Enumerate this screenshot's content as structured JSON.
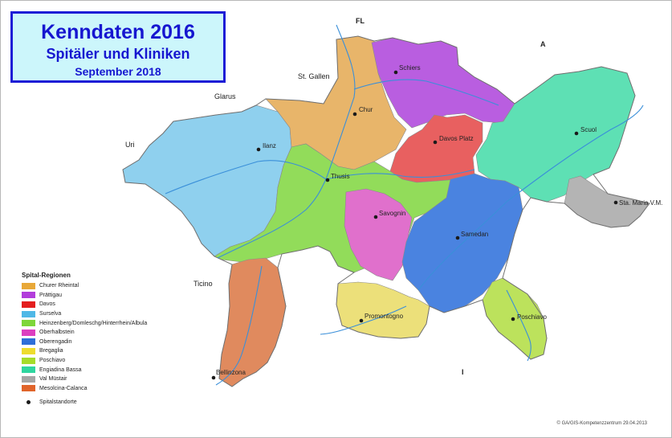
{
  "title": {
    "line1": "Kenndaten 2016",
    "line2": "Spitäler und Kliniken",
    "line3": "September 2018"
  },
  "neighbours": {
    "fl": "FL",
    "a": "A",
    "st_gallen": "St. Gallen",
    "glarus": "Glarus",
    "uri": "Uri",
    "ticino": "Ticino",
    "i": "I"
  },
  "hospital_sites": {
    "schiers": "Schiers",
    "chur": "Chur",
    "davos": "Davos Platz",
    "scuol": "Scuol",
    "ilanz": "Ilanz",
    "thusis": "Thusis",
    "savognin": "Savognin",
    "samedan": "Samedan",
    "sta_maria": "Sta. Maria V.M.",
    "promontogno": "Promontogno",
    "poschiavo": "Poschiavo",
    "bellinzona": "Bellinzona"
  },
  "legend": {
    "title": "Spital-Regionen",
    "items": [
      {
        "label": "Churer Rheintal",
        "color": "#e8a838"
      },
      {
        "label": "Prättigau",
        "color": "#b23ddb"
      },
      {
        "label": "Davos",
        "color": "#e31e1e"
      },
      {
        "label": "Surselva",
        "color": "#4fb8e6"
      },
      {
        "label": "Heinzenberg/Domleschg/Hinterrhein/Albula",
        "color": "#7ed63a"
      },
      {
        "label": "Oberhalbstein",
        "color": "#dc3fc0"
      },
      {
        "label": "Oberengadin",
        "color": "#2f6fd8"
      },
      {
        "label": "Bregaglia",
        "color": "#eedc2e"
      },
      {
        "label": "Poschiavo",
        "color": "#a6dc2a"
      },
      {
        "label": "Engiadina Bassa",
        "color": "#2fd6a0"
      },
      {
        "label": "Val Müstair",
        "color": "#a6a6a6"
      },
      {
        "label": "Mesolcina-Calanca",
        "color": "#e0642a"
      }
    ],
    "sites_label": "Spitalstandorte"
  },
  "copyright": "© GA/GIS-Kompetenzzentrum 29.04.2013"
}
